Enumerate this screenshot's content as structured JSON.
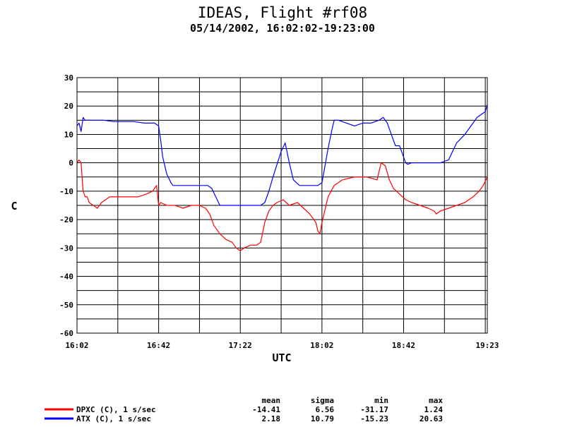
{
  "chart_data": {
    "type": "line",
    "title": "IDEAS, Flight #rf08",
    "subtitle": "05/14/2002, 16:02:02-19:23:00",
    "xlabel": "UTC",
    "ylabel": "C",
    "xlim": [
      "16:02",
      "19:23"
    ],
    "ylim": [
      -60,
      30
    ],
    "x_ticks": [
      "16:02",
      "16:42",
      "17:22",
      "18:02",
      "18:42",
      "19:23"
    ],
    "y_ticks": [
      "30",
      "20",
      "10",
      "0",
      "-10",
      "-20",
      "-30",
      "-40",
      "-50",
      "-60"
    ],
    "grid": true,
    "stats_headers": [
      "mean",
      "sigma",
      "min",
      "max"
    ],
    "series": [
      {
        "name": "DPXC (C), 1 s/sec",
        "color": "#ff0000",
        "stats": [
          "-14.41",
          "6.56",
          "-31.17",
          "1.24"
        ],
        "x": [
          "16:02",
          "16:03",
          "16:04",
          "16:05",
          "16:06",
          "16:07",
          "16:08",
          "16:10",
          "16:12",
          "16:14",
          "16:16",
          "16:18",
          "16:20",
          "16:24",
          "16:28",
          "16:32",
          "16:36",
          "16:39",
          "16:41",
          "16:42",
          "16:43",
          "16:46",
          "16:50",
          "16:54",
          "16:58",
          "17:02",
          "17:05",
          "17:07",
          "17:09",
          "17:12",
          "17:15",
          "17:18",
          "17:20",
          "17:22",
          "17:24",
          "17:27",
          "17:30",
          "17:32",
          "17:34",
          "17:36",
          "17:38",
          "17:40",
          "17:43",
          "17:46",
          "17:50",
          "17:53",
          "17:56",
          "17:59",
          "18:00",
          "18:01",
          "18:02",
          "18:03",
          "18:05",
          "18:08",
          "18:12",
          "18:18",
          "18:24",
          "18:29",
          "18:30",
          "18:31",
          "18:33",
          "18:35",
          "18:37",
          "18:40",
          "18:43",
          "18:46",
          "18:50",
          "18:54",
          "18:57",
          "18:58",
          "19:00",
          "19:04",
          "19:08",
          "19:12",
          "19:16",
          "19:19",
          "19:21",
          "19:23"
        ],
        "values": [
          0,
          1,
          0,
          -10,
          -12,
          -12,
          -14,
          -15,
          -16,
          -14,
          -13,
          -12,
          -12,
          -12,
          -12,
          -12,
          -11,
          -10,
          -8,
          -15,
          -14,
          -15,
          -15,
          -16,
          -15,
          -15,
          -16,
          -18,
          -22,
          -25,
          -27,
          -28,
          -30,
          -31,
          -30,
          -29,
          -29,
          -28,
          -21,
          -17,
          -15,
          -14,
          -13,
          -15,
          -14,
          -16,
          -18,
          -21,
          -24,
          -25,
          -21,
          -18,
          -12,
          -8,
          -6,
          -5,
          -5,
          -6,
          -3,
          0,
          -1,
          -6,
          -9,
          -11,
          -13,
          -14,
          -15,
          -16,
          -17,
          -18,
          -17,
          -16,
          -15,
          -14,
          -12,
          -10,
          -8,
          -5
        ]
      },
      {
        "name": "ATX (C), 1 s/sec",
        "color": "#0000ff",
        "stats": [
          "2.18",
          "10.79",
          "-15.23",
          "20.63"
        ],
        "x": [
          "16:02",
          "16:03",
          "16:04",
          "16:05",
          "16:06",
          "16:08",
          "16:10",
          "16:15",
          "16:20",
          "16:25",
          "16:30",
          "16:35",
          "16:40",
          "16:42",
          "16:43",
          "16:44",
          "16:46",
          "16:48",
          "16:49",
          "16:52",
          "16:56",
          "17:00",
          "17:04",
          "17:06",
          "17:08",
          "17:12",
          "17:16",
          "17:20",
          "17:24",
          "17:28",
          "17:30",
          "17:32",
          "17:34",
          "17:36",
          "17:38",
          "17:42",
          "17:44",
          "17:46",
          "17:48",
          "17:51",
          "17:54",
          "17:58",
          "18:00",
          "18:02",
          "18:03",
          "18:05",
          "18:07",
          "18:08",
          "18:10",
          "18:14",
          "18:18",
          "18:22",
          "18:26",
          "18:30",
          "18:32",
          "18:34",
          "18:36",
          "18:38",
          "18:40",
          "18:42",
          "18:43",
          "18:44",
          "18:46",
          "18:50",
          "18:55",
          "19:00",
          "19:04",
          "19:08",
          "19:12",
          "19:15",
          "19:18",
          "19:20",
          "19:22",
          "19:23"
        ],
        "values": [
          13,
          14,
          11,
          16,
          15,
          15,
          15,
          15,
          14.5,
          14.5,
          14.5,
          14,
          14,
          13,
          8,
          2,
          -4,
          -7,
          -8,
          -8,
          -8,
          -8,
          -8,
          -8,
          -9,
          -15,
          -15,
          -15,
          -15,
          -15,
          -15,
          -15,
          -14,
          -10,
          -5,
          4,
          7,
          0,
          -6,
          -8,
          -8,
          -8,
          -8,
          -7,
          -3,
          5,
          12,
          15,
          15,
          14,
          13,
          14,
          14,
          15,
          16,
          14,
          10,
          6,
          6,
          2,
          0,
          -0.5,
          0,
          0,
          0,
          0,
          1,
          7,
          10,
          13,
          16,
          17,
          18,
          20.5
        ]
      }
    ]
  }
}
